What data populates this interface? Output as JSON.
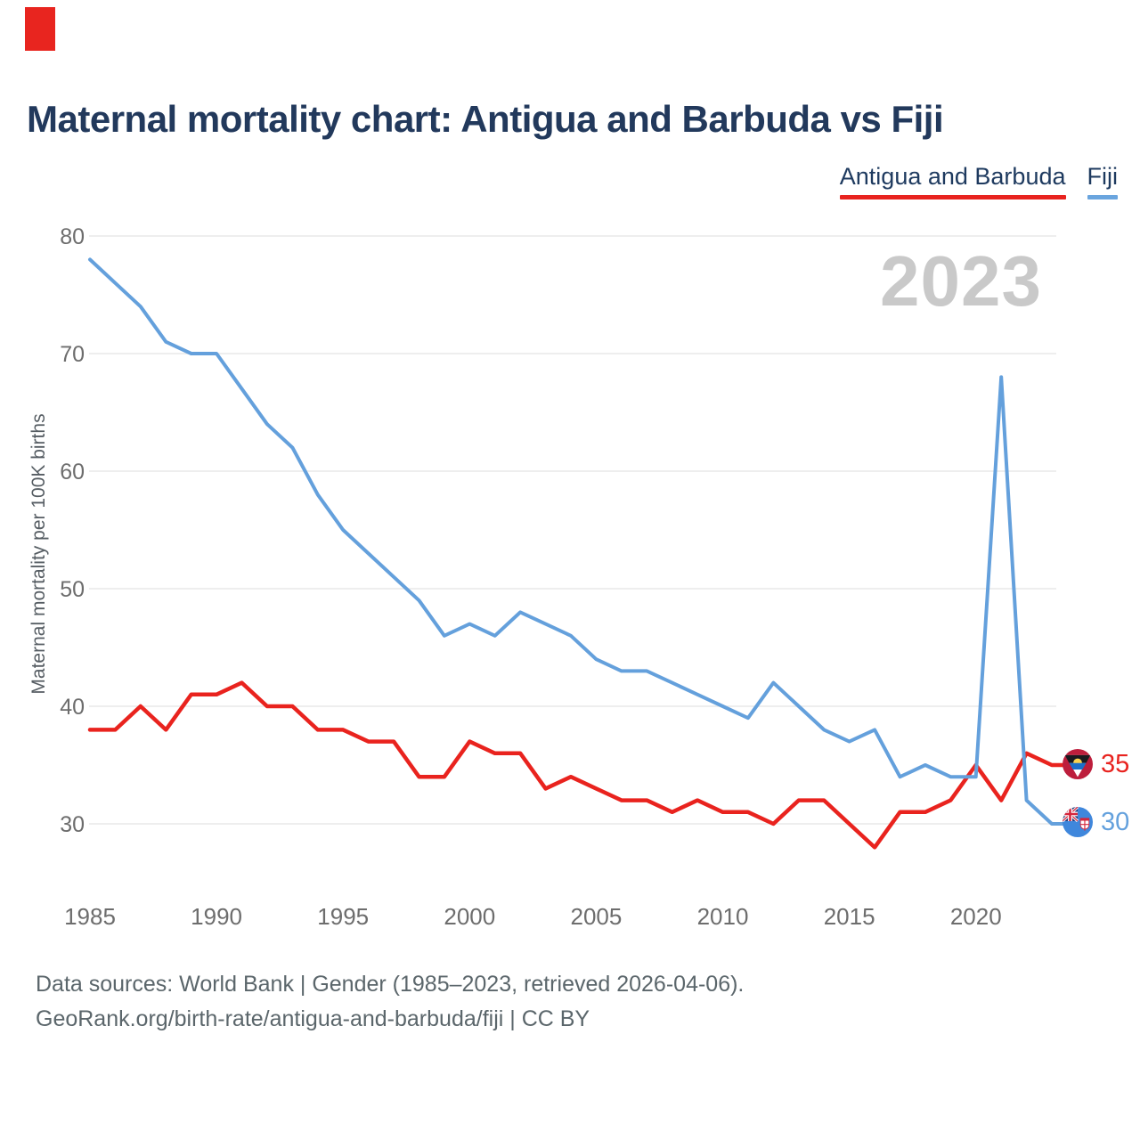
{
  "title": "Maternal mortality chart: Antigua and Barbuda vs Fiji",
  "watermark": "2023",
  "brand_color": "#e8251f",
  "legend": {
    "items": [
      {
        "label": "Antigua and Barbuda",
        "color": "#e8231f"
      },
      {
        "label": "Fiji",
        "color": "#64a0dc"
      }
    ],
    "position": "top-right"
  },
  "chart_data": {
    "type": "line",
    "title": "Maternal mortality chart: Antigua and Barbuda vs Fiji",
    "xlabel": "",
    "ylabel": "Maternal mortality per 100K births",
    "x": [
      1985,
      1986,
      1987,
      1988,
      1989,
      1990,
      1991,
      1992,
      1993,
      1994,
      1995,
      1996,
      1997,
      1998,
      1999,
      2000,
      2001,
      2002,
      2003,
      2004,
      2005,
      2006,
      2007,
      2008,
      2009,
      2010,
      2011,
      2012,
      2013,
      2014,
      2015,
      2016,
      2017,
      2018,
      2019,
      2020,
      2021,
      2022,
      2023
    ],
    "series": [
      {
        "name": "Antigua and Barbuda",
        "color": "#e9231e",
        "values": [
          38,
          38,
          40,
          38,
          41,
          41,
          42,
          40,
          40,
          38,
          38,
          37,
          37,
          34,
          34,
          37,
          36,
          36,
          33,
          34,
          33,
          32,
          32,
          31,
          32,
          31,
          31,
          30,
          32,
          32,
          30,
          28,
          31,
          31,
          32,
          35,
          32,
          36,
          35
        ]
      },
      {
        "name": "Fiji",
        "color": "#64a0dc",
        "values": [
          78,
          76,
          74,
          71,
          70,
          70,
          67,
          64,
          62,
          58,
          55,
          53,
          51,
          49,
          46,
          47,
          46,
          48,
          47,
          46,
          44,
          43,
          43,
          42,
          41,
          40,
          39,
          42,
          40,
          38,
          37,
          38,
          34,
          35,
          34,
          34,
          68,
          32,
          30
        ]
      }
    ],
    "ylim": [
      30,
      80
    ],
    "yticks": [
      80,
      70,
      60,
      50,
      40,
      30
    ],
    "xticks": [
      1985,
      1990,
      1995,
      2000,
      2005,
      2010,
      2015,
      2020
    ],
    "grid": "horizontal",
    "legend_position": "top-right"
  },
  "end_labels": [
    {
      "series": "Antigua and Barbuda",
      "value": "35",
      "icon": "antigua-and-barbuda-flag-icon"
    },
    {
      "series": "Fiji",
      "value": "30",
      "icon": "fiji-flag-icon"
    }
  ],
  "footer": {
    "line1": "Data sources: World Bank | Gender (1985–2023, retrieved 2026-04-06).",
    "line2": "GeoRank.org/birth-rate/antigua-and-barbuda/fiji | CC BY"
  }
}
